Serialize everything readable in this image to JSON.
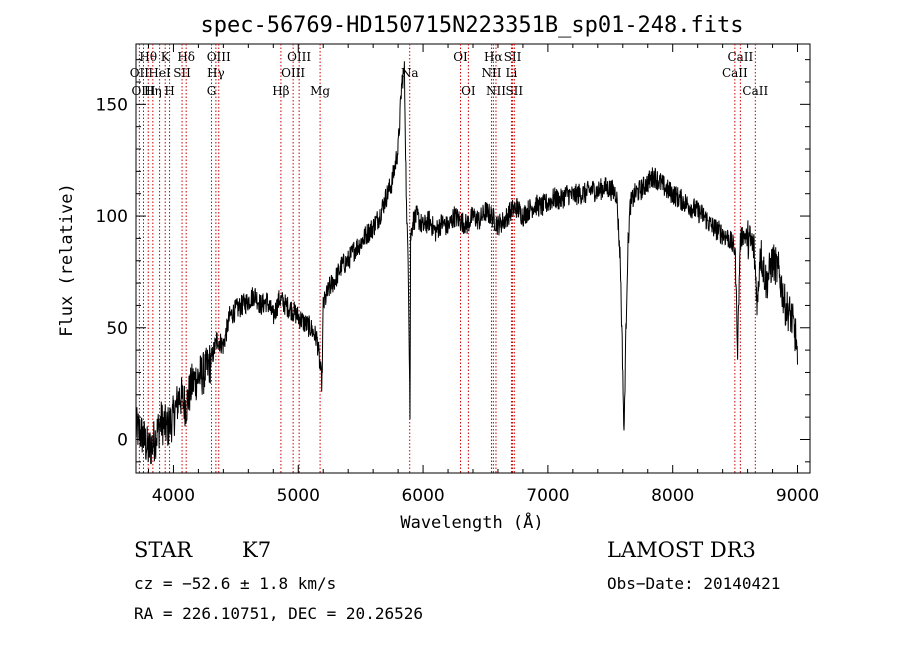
{
  "chart_data": {
    "type": "line",
    "title": "spec-56769-HD150715N223351B_sp01-248.fits",
    "xlabel": "Wavelength (Å)",
    "ylabel": "Flux (relative)",
    "xlim": [
      3700,
      9100
    ],
    "ylim": [
      -15,
      177
    ],
    "xticks": [
      4000,
      5000,
      6000,
      7000,
      8000,
      9000
    ],
    "yticks": [
      0,
      50,
      100,
      150
    ],
    "grid": false,
    "spectrum": {
      "x": [
        3700,
        3750,
        3800,
        3850,
        3900,
        3950,
        4000,
        4050,
        4100,
        4150,
        4200,
        4250,
        4300,
        4350,
        4400,
        4450,
        4500,
        4550,
        4600,
        4650,
        4700,
        4750,
        4800,
        4850,
        4900,
        4950,
        5000,
        5050,
        5100,
        5150,
        5190,
        5200,
        5250,
        5300,
        5350,
        5400,
        5450,
        5500,
        5550,
        5600,
        5650,
        5700,
        5750,
        5800,
        5830,
        5850,
        5870,
        5880,
        5890,
        5895,
        5900,
        5910,
        5920,
        5950,
        6000,
        6050,
        6100,
        6150,
        6200,
        6250,
        6300,
        6350,
        6400,
        6450,
        6500,
        6550,
        6600,
        6650,
        6700,
        6750,
        6800,
        6850,
        6900,
        6950,
        7000,
        7050,
        7100,
        7150,
        7200,
        7250,
        7300,
        7350,
        7400,
        7450,
        7500,
        7550,
        7580,
        7600,
        7610,
        7620,
        7640,
        7660,
        7700,
        7750,
        7800,
        7850,
        7900,
        7950,
        8000,
        8050,
        8100,
        8150,
        8200,
        8250,
        8300,
        8350,
        8400,
        8450,
        8500,
        8520,
        8540,
        8560,
        8600,
        8650,
        8680,
        8700,
        8750,
        8800,
        8850,
        8900,
        8950,
        8990,
        9000
      ],
      "y": [
        5,
        2,
        -5,
        0,
        8,
        5,
        10,
        20,
        15,
        25,
        28,
        30,
        35,
        45,
        42,
        55,
        58,
        60,
        62,
        65,
        60,
        62,
        55,
        63,
        60,
        58,
        55,
        52,
        50,
        45,
        25,
        60,
        68,
        72,
        78,
        80,
        85,
        88,
        92,
        95,
        100,
        108,
        115,
        130,
        160,
        165,
        95,
        85,
        40,
        10,
        90,
        95,
        98,
        100,
        95,
        98,
        93,
        97,
        95,
        100,
        98,
        96,
        100,
        98,
        102,
        100,
        96,
        98,
        102,
        104,
        100,
        103,
        105,
        104,
        106,
        108,
        107,
        110,
        109,
        110,
        110,
        112,
        111,
        113,
        112,
        110,
        80,
        30,
        0,
        35,
        85,
        105,
        110,
        112,
        115,
        118,
        115,
        112,
        110,
        108,
        106,
        104,
        102,
        100,
        96,
        94,
        92,
        90,
        85,
        40,
        88,
        92,
        90,
        86,
        60,
        85,
        70,
        80,
        75,
        60,
        55,
        45,
        30
      ]
    },
    "lines": [
      {
        "label": "Hθ",
        "wl": 3798,
        "row": 1
      },
      {
        "label": "OII",
        "wl": 3727,
        "row": 2
      },
      {
        "label": "OIII",
        "wl": 3760,
        "row": 3
      },
      {
        "label": "K",
        "wl": 3934,
        "row": 1
      },
      {
        "label": "HeI",
        "wl": 3889,
        "row": 2
      },
      {
        "label": "Hη",
        "wl": 3835,
        "row": 3
      },
      {
        "label": "SII",
        "wl": 4069,
        "row": 2
      },
      {
        "label": "H",
        "wl": 3969,
        "row": 3
      },
      {
        "label": "Hδ",
        "wl": 4102,
        "row": 1
      },
      {
        "label": "OIII",
        "wl": 4363,
        "row": 1
      },
      {
        "label": "Hγ",
        "wl": 4340,
        "row": 2
      },
      {
        "label": "G",
        "wl": 4305,
        "row": 3
      },
      {
        "label": "Hβ",
        "wl": 4861,
        "row": 3
      },
      {
        "label": "OIII",
        "wl": 5007,
        "row": 1
      },
      {
        "label": "OIII",
        "wl": 4959,
        "row": 2
      },
      {
        "label": "Mg",
        "wl": 5175,
        "row": 3
      },
      {
        "label": "Na",
        "wl": 5893,
        "row": 2
      },
      {
        "label": "OI",
        "wl": 6300,
        "row": 1
      },
      {
        "label": "OI",
        "wl": 6363,
        "row": 3
      },
      {
        "label": "Hα",
        "wl": 6563,
        "row": 1
      },
      {
        "label": "NII",
        "wl": 6548,
        "row": 2
      },
      {
        "label": "NII",
        "wl": 6584,
        "row": 3
      },
      {
        "label": "SII",
        "wl": 6717,
        "row": 1
      },
      {
        "label": "Li",
        "wl": 6708,
        "row": 2
      },
      {
        "label": "SII",
        "wl": 6731,
        "row": 3
      },
      {
        "label": "CaII",
        "wl": 8542,
        "row": 1
      },
      {
        "label": "CaII",
        "wl": 8498,
        "row": 2
      },
      {
        "label": "CaII",
        "wl": 8662,
        "row": 3
      }
    ]
  },
  "info": {
    "class": "STAR",
    "subclass": "K7",
    "cz": "cz = −52.6 ± 1.8 km/s",
    "coords": "RA = 226.10751, DEC =  20.26526",
    "survey": "LAMOST DR3",
    "obs_date": "Obs−Date: 20140421"
  }
}
